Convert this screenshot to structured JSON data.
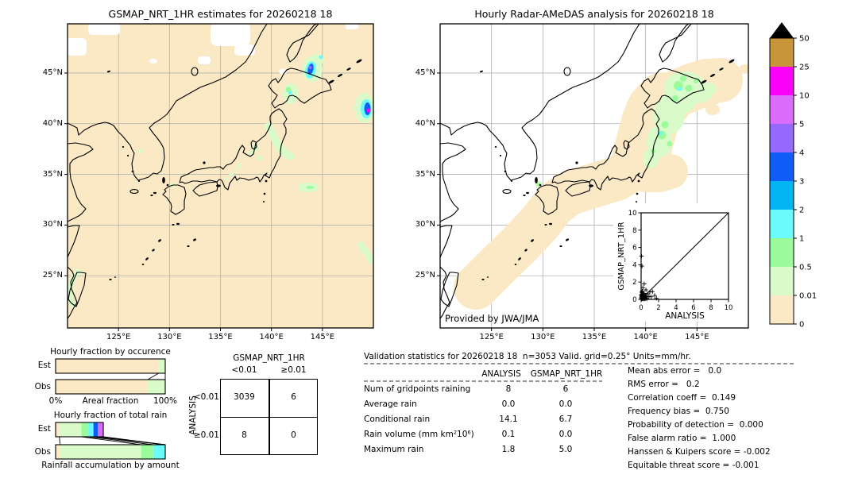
{
  "maps": {
    "left": {
      "title": "GSMAP_NRT_1HR estimates for 20260218 18"
    },
    "right": {
      "title": "Hourly Radar-AMeDAS analysis for 20260218 18",
      "credit": "Provided by JWA/JMA"
    },
    "x_ticks": [
      {
        "label": "125°E",
        "lon": 125
      },
      {
        "label": "130°E",
        "lon": 130
      },
      {
        "label": "135°E",
        "lon": 135
      },
      {
        "label": "140°E",
        "lon": 140
      },
      {
        "label": "145°E",
        "lon": 145
      }
    ],
    "y_ticks": [
      {
        "label": "45°N",
        "lat": 45
      },
      {
        "label": "40°N",
        "lat": 40
      },
      {
        "label": "35°N",
        "lat": 35
      },
      {
        "label": "30°N",
        "lat": 30
      },
      {
        "label": "25°N",
        "lat": 25
      }
    ]
  },
  "colorbar": {
    "units": "mm/hr",
    "boundaries": [
      "50",
      "25",
      "10",
      "5",
      "4",
      "3",
      "2",
      "1",
      "0.5",
      "0.01",
      "0"
    ],
    "colors": [
      "#c8953b",
      "#fb00fb",
      "#db6bfb",
      "#9569fb",
      "#0f5df6",
      "#00b5f1",
      "#6bfbfb",
      "#9bfb9b",
      "#d9fbc9",
      "#fbe9c5"
    ],
    "arrow_color": "#000000"
  },
  "chart_data": [
    {
      "id": "occurrence",
      "type": "bar",
      "orientation": "horizontal",
      "title": "Hourly fraction by occurence",
      "xlabel": "Areal fraction",
      "x_axis_labels": [
        "0%",
        "100%"
      ],
      "categories": [
        "Est",
        "Obs"
      ],
      "series": [
        {
          "name": "Est",
          "segments": [
            {
              "bin": "0-0.01",
              "color": "#fbe9c5",
              "fraction": 0.94
            },
            {
              "bin": "0.01-0.5",
              "color": "#d9fbc9",
              "fraction": 0.06
            }
          ]
        },
        {
          "name": "Obs",
          "segments": [
            {
              "bin": "0-0.01",
              "color": "#fbe9c5",
              "fraction": 0.84
            },
            {
              "bin": "0.01-0.5",
              "color": "#d9fbc9",
              "fraction": 0.16
            }
          ]
        }
      ],
      "connectors": [
        [
          0.94,
          0.84
        ],
        [
          1.0,
          1.0
        ]
      ]
    },
    {
      "id": "total_rain",
      "type": "bar",
      "orientation": "horizontal",
      "title": "Hourly fraction of total rain",
      "xlabel": "Rainfall accumulation by amount",
      "categories": [
        "Est",
        "Obs"
      ],
      "series": [
        {
          "name": "Est",
          "segments": [
            {
              "bin": "0-0.01",
              "color": "#fbe9c5",
              "fraction": 0.035
            },
            {
              "bin": "0.01-0.5",
              "color": "#d9fbc9",
              "fraction": 0.2
            },
            {
              "bin": "0.5-1",
              "color": "#9bfb9b",
              "fraction": 0.06
            },
            {
              "bin": "1-2",
              "color": "#6bfbfb",
              "fraction": 0.05
            },
            {
              "bin": "3-4",
              "color": "#0f5df6",
              "fraction": 0.04
            },
            {
              "bin": "5-10",
              "color": "#db6bfb",
              "fraction": 0.05
            }
          ]
        },
        {
          "name": "Obs",
          "segments": [
            {
              "bin": "0-0.01",
              "color": "#fbe9c5",
              "fraction": 0.04
            },
            {
              "bin": "0.01-0.5",
              "color": "#d9fbc9",
              "fraction": 0.74
            },
            {
              "bin": "0.5-1",
              "color": "#9bfb9b",
              "fraction": 0.11
            },
            {
              "bin": "1-2",
              "color": "#6bfbfb",
              "fraction": 0.11
            }
          ]
        }
      ],
      "connectors": [
        [
          0.035,
          0.04
        ],
        [
          0.235,
          0.78
        ],
        [
          0.295,
          0.89
        ],
        [
          0.345,
          1.0
        ],
        [
          0.385,
          1.0
        ],
        [
          0.435,
          1.0
        ]
      ]
    },
    {
      "id": "contingency",
      "type": "table",
      "col_group_label": "GSMAP_NRT_1HR",
      "row_group_label": "ANALYSIS",
      "col_labels": [
        "<0.01",
        "≥0.01"
      ],
      "row_labels": [
        "<0.01",
        "≥0.01"
      ],
      "values": [
        [
          "3039",
          "6"
        ],
        [
          "8",
          "0"
        ]
      ]
    },
    {
      "id": "validation_stats",
      "type": "table",
      "title": "Validation statistics for 20260218 18  n=3053 Valid. grid=0.25° Units=mm/hr.",
      "columns": [
        "ANALYSIS",
        "GSMAP_NRT_1HR"
      ],
      "rows": [
        {
          "label": "Num of gridpoints raining",
          "analysis": "8",
          "gsmap": "6"
        },
        {
          "label": "Average rain",
          "analysis": "0.0",
          "gsmap": "0.0"
        },
        {
          "label": "Conditional rain",
          "analysis": "14.1",
          "gsmap": "6.7"
        },
        {
          "label": "Rain volume (mm km²10⁶)",
          "analysis": "0.1",
          "gsmap": "0.0"
        },
        {
          "label": "Maximum rain",
          "analysis": "1.8",
          "gsmap": "5.0"
        }
      ],
      "scores": [
        {
          "label": "Mean abs error",
          "value": "0.0",
          "text": "Mean abs error =   0.0"
        },
        {
          "label": "RMS error",
          "value": "0.2",
          "text": "RMS error =   0.2"
        },
        {
          "label": "Correlation coeff",
          "value": "0.149",
          "text": "Correlation coeff =  0.149"
        },
        {
          "label": "Frequency bias",
          "value": "0.750",
          "text": "Frequency bias =  0.750"
        },
        {
          "label": "Probability of detection",
          "value": "0.000",
          "text": "Probability of detection =  0.000"
        },
        {
          "label": "False alarm ratio",
          "value": "1.000",
          "text": "False alarm ratio =  1.000"
        },
        {
          "label": "Hanssen & Kuipers score",
          "value": "-0.002",
          "text": "Hanssen & Kuipers score = -0.002"
        },
        {
          "label": "Equitable threat score",
          "value": "-0.001",
          "text": "Equitable threat score = -0.001"
        }
      ]
    },
    {
      "id": "inset_scatter",
      "type": "scatter",
      "xlabel": "ANALYSIS",
      "ylabel": "GSMAP_NRT_1HR",
      "xlim": [
        0,
        10
      ],
      "ylim": [
        0,
        10
      ],
      "ticks": [
        0,
        2,
        4,
        6,
        8,
        10
      ],
      "points": [
        [
          0.05,
          5.0
        ],
        [
          0.1,
          3.85
        ],
        [
          0.35,
          1.8
        ],
        [
          0.2,
          1.35
        ],
        [
          0.15,
          0.95
        ],
        [
          0.55,
          1.1
        ],
        [
          0.75,
          0.65
        ],
        [
          1.0,
          0.85
        ],
        [
          1.3,
          0.9
        ],
        [
          0.9,
          0.35
        ],
        [
          1.15,
          0.3
        ],
        [
          1.55,
          0.45
        ],
        [
          1.75,
          0.12
        ],
        [
          0.5,
          0.2
        ],
        [
          0.65,
          0.05
        ],
        [
          0.3,
          0.55
        ],
        [
          0.4,
          0.35
        ],
        [
          0.03,
          0.03
        ],
        [
          0.06,
          0.12
        ],
        [
          0.1,
          0.05
        ],
        [
          0.13,
          0.17
        ],
        [
          0.05,
          0.3
        ],
        [
          0.16,
          0.06
        ],
        [
          0.2,
          0.22
        ],
        [
          0.1,
          0.45
        ],
        [
          0.26,
          0.1
        ],
        [
          0.3,
          0.3
        ],
        [
          0.02,
          0.2
        ],
        [
          0.18,
          0.36
        ],
        [
          0.36,
          0.16
        ],
        [
          0.08,
          0.6
        ],
        [
          0.22,
          0.5
        ],
        [
          0.42,
          0.06
        ],
        [
          0.15,
          0.72
        ],
        [
          0.05,
          0.82
        ],
        [
          0.3,
          0.02
        ],
        [
          0.46,
          0.46
        ],
        [
          0.02,
          0.5
        ],
        [
          0.56,
          0.3
        ],
        [
          0.12,
          0.92
        ],
        [
          0.62,
          0.16
        ],
        [
          0.35,
          0.7
        ],
        [
          0.48,
          0.08
        ],
        [
          0.07,
          0.4
        ]
      ]
    }
  ]
}
